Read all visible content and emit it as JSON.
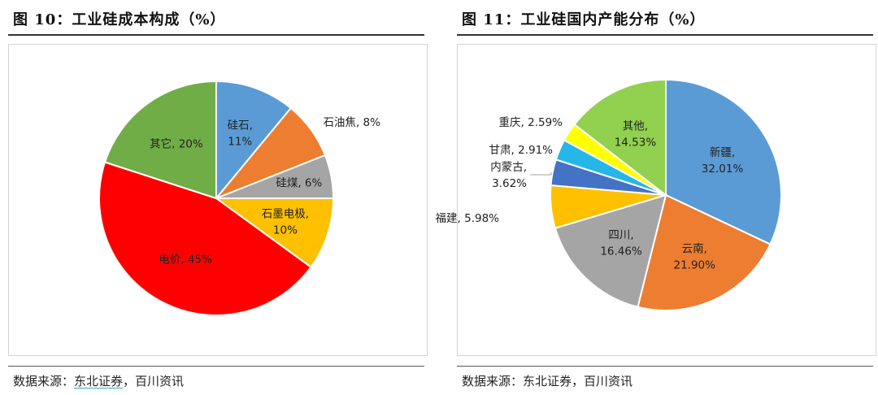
{
  "figures": [
    {
      "title": "图 10：工业硅成本构成（%）",
      "source_prefix": "数据来源：",
      "source_link": "东北证券",
      "source_suffix": "，百川资讯"
    },
    {
      "title": "图 11：工业硅国内产能分布（%）",
      "source_prefix": "数据来源：",
      "source_link": "东北证券",
      "source_suffix": "，百川资讯"
    }
  ],
  "chart_data": [
    {
      "type": "pie",
      "title": "图 10：工业硅成本构成（%）",
      "unit": "%",
      "slices": [
        {
          "label": "硅石",
          "value": 11,
          "value_label": "11%",
          "color": "#5B9BD5"
        },
        {
          "label": "石油焦",
          "value": 8,
          "value_label": "8%",
          "color": "#ED7D31"
        },
        {
          "label": "硅煤",
          "value": 6,
          "value_label": "6%",
          "color": "#A5A5A5"
        },
        {
          "label": "石墨电极",
          "value": 10,
          "value_label": "10%",
          "color": "#FFC000"
        },
        {
          "label": "电价",
          "value": 45,
          "value_label": "45%",
          "color": "#FF0000"
        },
        {
          "label": "其它",
          "value": 20,
          "value_label": "20%",
          "color": "#70AD47"
        }
      ]
    },
    {
      "type": "pie",
      "title": "图 11：工业硅国内产能分布（%）",
      "unit": "%",
      "slices": [
        {
          "label": "新疆",
          "value": 32.01,
          "value_label": "32.01%",
          "color": "#5B9BD5"
        },
        {
          "label": "云南",
          "value": 21.9,
          "value_label": "21.90%",
          "color": "#ED7D31"
        },
        {
          "label": "四川",
          "value": 16.46,
          "value_label": "16.46%",
          "color": "#A5A5A5"
        },
        {
          "label": "福建",
          "value": 5.98,
          "value_label": "5.98%",
          "color": "#FFC000"
        },
        {
          "label": "内蒙古",
          "value": 3.62,
          "value_label": "3.62%",
          "color": "#4472C4"
        },
        {
          "label": "甘肃",
          "value": 2.91,
          "value_label": "2.91%",
          "color": "#26B6E8"
        },
        {
          "label": "重庆",
          "value": 2.59,
          "value_label": "2.59%",
          "color": "#FFFF00"
        },
        {
          "label": "其他",
          "value": 14.53,
          "value_label": "14.53%",
          "color": "#92D050"
        }
      ]
    }
  ]
}
